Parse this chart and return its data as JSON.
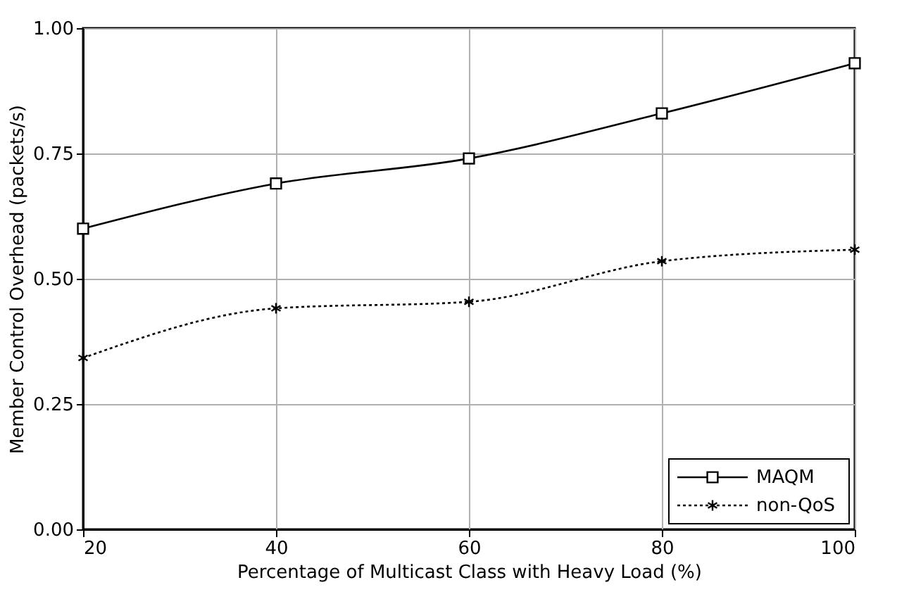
{
  "chart_data": {
    "type": "line",
    "xlabel": "Percentage of Multicast Class with Heavy Load (%)",
    "ylabel": "Member Control Overhead (packets/s)",
    "x": [
      20,
      40,
      60,
      80,
      100
    ],
    "xlim": [
      20,
      100
    ],
    "xticks": [
      20,
      40,
      60,
      80,
      100
    ],
    "ylim": [
      0,
      1
    ],
    "yticks": [
      {
        "value": 0,
        "label": "0.00"
      },
      {
        "value": 0.25,
        "label": "0.25"
      },
      {
        "value": 0.5,
        "label": "0.50"
      },
      {
        "value": 0.75,
        "label": "0.75"
      },
      {
        "value": 1,
        "label": "1.00"
      }
    ],
    "grid": true,
    "legend": "bottom right",
    "series": [
      {
        "name": "MAQM",
        "color": "#000000",
        "marker": "square",
        "line_style": "solid",
        "values": [
          0.6,
          0.69,
          0.74,
          0.83,
          0.93
        ]
      },
      {
        "name": "non-QoS",
        "color": "#000000",
        "marker": "cross",
        "line_style": "dotted",
        "values": [
          0.342,
          0.441,
          0.454,
          0.535,
          0.558
        ]
      }
    ]
  }
}
